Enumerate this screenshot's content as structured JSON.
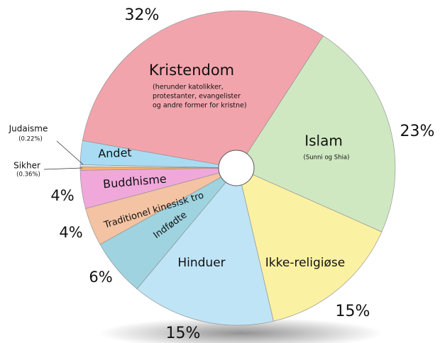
{
  "chart_data": {
    "type": "pie",
    "categories": [
      "Kristendom",
      "Islam",
      "Ikke-religiøse",
      "Hinduer",
      "Indfødte",
      "Traditionel kinesisk tro",
      "Buddhisme",
      "Sikher",
      "Judaisme",
      "Andet"
    ],
    "values": [
      32,
      23,
      15,
      15,
      6,
      4,
      4,
      0.36,
      0.22,
      2.5
    ],
    "value_labels": [
      "32%",
      "23%",
      "15%",
      "15%",
      "6%",
      "4%",
      "4%",
      "(0.36%)",
      "(0.22%)",
      null
    ],
    "notes": [
      [
        "(herunder katolikker,",
        "protestanter, evangelister",
        "og andre former for kristne)"
      ],
      [
        "(Sunni og Shia)"
      ],
      null,
      null,
      null,
      null,
      null,
      null,
      null,
      null
    ],
    "colors": [
      "#f2a4ac",
      "#cfe8c2",
      "#fbf1a2",
      "#bfe4f6",
      "#9ed3df",
      "#f3c3a3",
      "#f0a8da",
      "#f5b070",
      "#f4e3c8",
      "#a9dcf3"
    ]
  }
}
